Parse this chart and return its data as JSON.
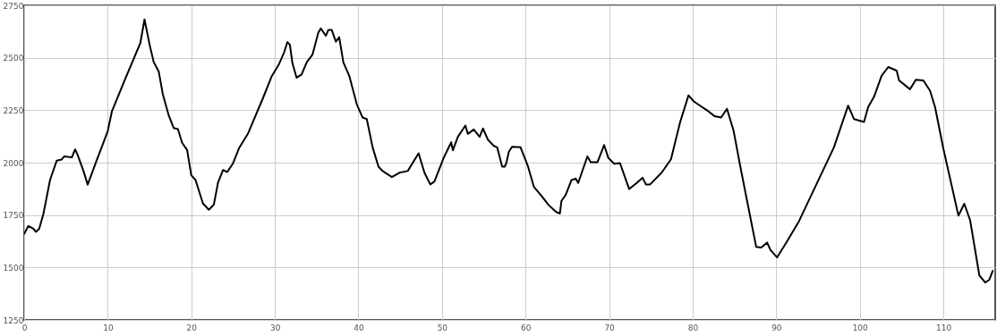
{
  "chart_data": {
    "type": "line",
    "xlim": [
      0,
      116.2
    ],
    "ylim": [
      1250,
      2750
    ],
    "xticks": [
      0,
      10,
      20,
      30,
      40,
      50,
      60,
      70,
      80,
      90,
      100,
      110
    ],
    "yticks": [
      1250,
      1500,
      1750,
      2000,
      2250,
      2500,
      2750
    ],
    "grid": true,
    "marker": "none",
    "line_style": "solid",
    "series": [
      {
        "color": "#000000",
        "x": [
          0,
          0.5,
          1.1,
          1.4,
          1.8,
          2.3,
          3.1,
          3.9,
          4.5,
          4.8,
          5.7,
          6.1,
          6.4,
          7.1,
          7.6,
          8.6,
          10,
          10.5,
          12.1,
          13.9,
          14.4,
          15.0,
          15.5,
          16.1,
          16.6,
          17.3,
          17.9,
          18.4,
          18.9,
          19.5,
          20.0,
          20.5,
          21.4,
          22.1,
          22.7,
          23.2,
          23.8,
          24.3,
          25.0,
          25.7,
          26.8,
          28.6,
          29.6,
          30.5,
          31.1,
          31.5,
          31.8,
          32.1,
          32.6,
          33.2,
          33.8,
          34.5,
          35.2,
          35.5,
          36.1,
          36.4,
          36.8,
          37.3,
          37.7,
          38.2,
          38.9,
          39.8,
          40.5,
          41.0,
          41.7,
          42.4,
          42.9,
          44.0,
          44.9,
          45.9,
          47.2,
          47.9,
          48.6,
          49.1,
          50.2,
          51.1,
          51.3,
          51.9,
          52.8,
          53.1,
          53.8,
          54.5,
          54.9,
          55.5,
          56.2,
          56.6,
          57.2,
          57.5,
          57.7,
          58.0,
          58.4,
          59.4,
          60.3,
          61.0,
          61.9,
          62.8,
          63.7,
          64.1,
          64.3,
          64.8,
          65.5,
          66.0,
          66.3,
          67.4,
          67.8,
          68.6,
          69.4,
          69.9,
          70.6,
          71.3,
          72.2,
          72.4,
          73.3,
          74.0,
          74.4,
          74.9,
          76.3,
          77.4,
          78.5,
          79.5,
          80.1,
          80.6,
          81.7,
          82.6,
          83.4,
          84.1,
          84.9,
          85.7,
          87.0,
          87.6,
          88.2,
          88.9,
          89.3,
          90.1,
          91.2,
          92.7,
          94.8,
          96.9,
          98.6,
          99.3,
          100.5,
          101.0,
          101.7,
          102.6,
          103.4,
          104.4,
          104.7,
          106.0,
          106.7,
          107.6,
          108.4,
          109.0,
          110.0,
          111.8,
          112.5,
          113.2,
          114.3,
          115.0,
          115.5,
          115.9
        ],
        "values": [
          1660,
          1698,
          1685,
          1670,
          1685,
          1755,
          1918,
          2010,
          2015,
          2030,
          2025,
          2063,
          2037,
          1960,
          1895,
          2003,
          2150,
          2245,
          2400,
          2570,
          2683,
          2565,
          2480,
          2435,
          2325,
          2225,
          2165,
          2160,
          2095,
          2060,
          1940,
          1918,
          1805,
          1775,
          1800,
          1905,
          1965,
          1955,
          1997,
          2068,
          2140,
          2310,
          2410,
          2470,
          2525,
          2575,
          2562,
          2475,
          2405,
          2420,
          2478,
          2515,
          2620,
          2640,
          2605,
          2633,
          2633,
          2577,
          2598,
          2478,
          2414,
          2279,
          2215,
          2208,
          2073,
          1981,
          1960,
          1931,
          1952,
          1960,
          2045,
          1952,
          1896,
          1910,
          2023,
          2097,
          2059,
          2123,
          2177,
          2137,
          2158,
          2123,
          2163,
          2109,
          2080,
          2073,
          1981,
          1981,
          1998,
          2052,
          2076,
          2073,
          1981,
          1884,
          1842,
          1796,
          1764,
          1757,
          1818,
          1846,
          1917,
          1924,
          1903,
          2030,
          2002,
          2002,
          2084,
          2023,
          1995,
          1998,
          1896,
          1874,
          1903,
          1928,
          1896,
          1896,
          1953,
          2016,
          2194,
          2321,
          2293,
          2279,
          2250,
          2222,
          2215,
          2257,
          2151,
          1981,
          1719,
          1598,
          1595,
          1619,
          1584,
          1548,
          1619,
          1719,
          1896,
          2073,
          2272,
          2208,
          2194,
          2265,
          2314,
          2414,
          2456,
          2439,
          2392,
          2350,
          2395,
          2392,
          2343,
          2265,
          2066,
          1747,
          1804,
          1725,
          1463,
          1428,
          1442,
          1484
        ]
      }
    ]
  }
}
